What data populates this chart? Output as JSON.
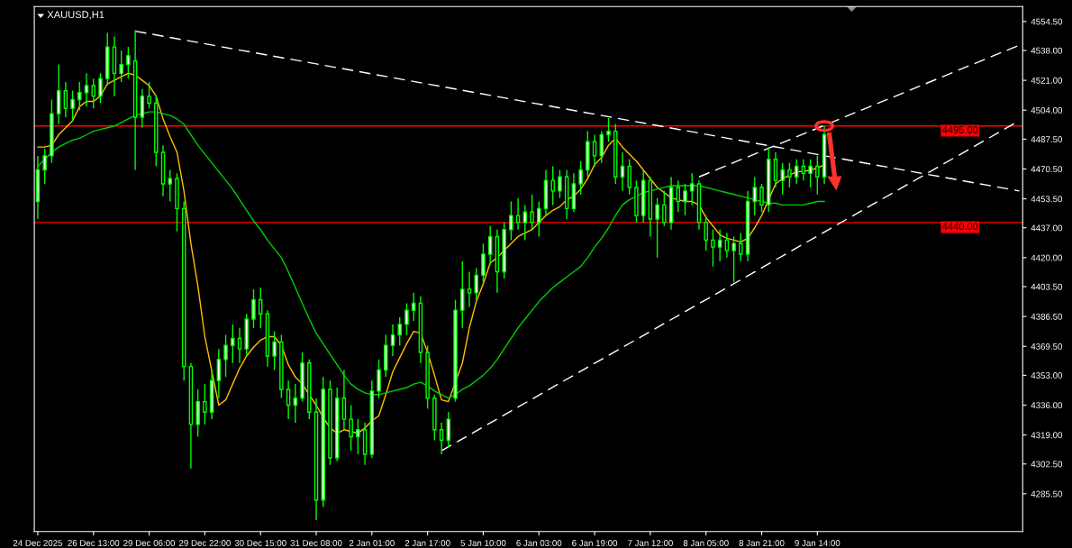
{
  "chart_data": {
    "type": "candlestick",
    "title": "XAUUSD,H1",
    "categories": [
      "24 Dec 2025",
      null,
      null,
      null,
      null,
      null,
      null,
      null,
      "26 Dec 13:00",
      null,
      null,
      null,
      null,
      null,
      null,
      null,
      "29 Dec 06:00",
      null,
      null,
      null,
      null,
      null,
      null,
      null,
      "29 Dec 22:00",
      null,
      null,
      null,
      null,
      null,
      null,
      null,
      "30 Dec 15:00",
      null,
      null,
      null,
      null,
      null,
      null,
      null,
      "31 Dec 08:00",
      null,
      null,
      null,
      null,
      null,
      null,
      null,
      "2 Jan 01:00",
      null,
      null,
      null,
      null,
      null,
      null,
      null,
      "2 Jan 17:00",
      null,
      null,
      null,
      null,
      null,
      null,
      null,
      "5 Jan 10:00",
      null,
      null,
      null,
      null,
      null,
      null,
      null,
      "6 Jan 03:00",
      null,
      null,
      null,
      null,
      null,
      null,
      null,
      "6 Jan 19:00",
      null,
      null,
      null,
      null,
      null,
      null,
      null,
      "7 Jan 12:00",
      null,
      null,
      null,
      null,
      null,
      null,
      null,
      "8 Jan 05:00",
      null,
      null,
      null,
      null,
      null,
      null,
      null,
      "8 Jan 21:00",
      null,
      null,
      null,
      null,
      null,
      null,
      null,
      "9 Jan 14:00",
      null,
      null,
      null,
      null,
      null,
      null,
      null,
      null,
      null,
      null,
      null,
      null,
      null,
      null,
      null,
      null,
      null,
      null,
      null,
      null,
      null,
      null,
      null,
      null,
      null,
      null,
      null,
      null,
      null
    ],
    "color": "#00ff00",
    "ohlc": [
      [
        4452,
        4478,
        4442,
        4470
      ],
      [
        4470,
        4482,
        4462,
        4478
      ],
      [
        4478,
        4510,
        4474,
        4502
      ],
      [
        4502,
        4530,
        4496,
        4515
      ],
      [
        4515,
        4520,
        4500,
        4505
      ],
      [
        4505,
        4515,
        4498,
        4510
      ],
      [
        4510,
        4520,
        4504,
        4514
      ],
      [
        4514,
        4525,
        4506,
        4518
      ],
      [
        4518,
        4522,
        4505,
        4512
      ],
      [
        4512,
        4525,
        4508,
        4522
      ],
      [
        4522,
        4548,
        4518,
        4540
      ],
      [
        4540,
        4546,
        4512,
        4525
      ],
      [
        4525,
        4538,
        4520,
        4530
      ],
      [
        4530,
        4540,
        4522,
        4535
      ],
      [
        4532,
        4549.5,
        4470,
        4500
      ],
      [
        4500,
        4516,
        4494,
        4512
      ],
      [
        4512,
        4520,
        4505,
        4508
      ],
      [
        4508,
        4512,
        4472,
        4480
      ],
      [
        4480,
        4484,
        4455,
        4462
      ],
      [
        4462,
        4470,
        4452,
        4465
      ],
      [
        4465,
        4468,
        4435,
        4448
      ],
      [
        4448,
        4452,
        4350,
        4358
      ],
      [
        4358,
        4360,
        4300,
        4325
      ],
      [
        4325,
        4345,
        4318,
        4338
      ],
      [
        4338,
        4348,
        4325,
        4332
      ],
      [
        4332,
        4356,
        4328,
        4350
      ],
      [
        4350,
        4368,
        4340,
        4362
      ],
      [
        4362,
        4376,
        4352,
        4370
      ],
      [
        4370,
        4382,
        4360,
        4374
      ],
      [
        4374,
        4380,
        4360,
        4368
      ],
      [
        4368,
        4388,
        4364,
        4385
      ],
      [
        4385,
        4402,
        4380,
        4396
      ],
      [
        4396,
        4403,
        4380,
        4388
      ],
      [
        4388,
        4390,
        4358,
        4364
      ],
      [
        4364,
        4378,
        4356,
        4372
      ],
      [
        4372,
        4376,
        4340,
        4345
      ],
      [
        4345,
        4350,
        4328,
        4336
      ],
      [
        4336,
        4348,
        4326,
        4340
      ],
      [
        4340,
        4366,
        4338,
        4360
      ],
      [
        4360,
        4362,
        4328,
        4332
      ],
      [
        4332,
        4340,
        4270.5,
        4282
      ],
      [
        4282,
        4352,
        4278,
        4345
      ],
      [
        4345,
        4350,
        4302,
        4306
      ],
      [
        4306,
        4346,
        4304,
        4340
      ],
      [
        4340,
        4356,
        4322,
        4328
      ],
      [
        4328,
        4336,
        4310,
        4318
      ],
      [
        4318,
        4328,
        4308,
        4322
      ],
      [
        4322,
        4326,
        4302,
        4308
      ],
      [
        4308,
        4350,
        4306,
        4344
      ],
      [
        4344,
        4362,
        4340,
        4356
      ],
      [
        4356,
        4376,
        4352,
        4370
      ],
      [
        4370,
        4382,
        4364,
        4376
      ],
      [
        4376,
        4386,
        4370,
        4382
      ],
      [
        4382,
        4394,
        4376,
        4390
      ],
      [
        4390,
        4400,
        4384,
        4394
      ],
      [
        4394,
        4398,
        4360,
        4366
      ],
      [
        4366,
        4370,
        4334,
        4340
      ],
      [
        4340,
        4342,
        4316,
        4322
      ],
      [
        4322,
        4326,
        4308,
        4316
      ],
      [
        4316,
        4332,
        4312,
        4328
      ],
      [
        4340,
        4396,
        4338,
        4390
      ],
      [
        4390,
        4418,
        4380,
        4402
      ],
      [
        4402,
        4412,
        4392,
        4400
      ],
      [
        4400,
        4414,
        4396,
        4410
      ],
      [
        4410,
        4428,
        4404,
        4422
      ],
      [
        4422,
        4438,
        4416,
        4432
      ],
      [
        4432,
        4436,
        4400,
        4412
      ],
      [
        4412,
        4440,
        4408,
        4436
      ],
      [
        4436,
        4452,
        4430,
        4444
      ],
      [
        4444,
        4454,
        4436,
        4440
      ],
      [
        4440,
        4450,
        4430,
        4446
      ],
      [
        4446,
        4456,
        4436,
        4440
      ],
      [
        4440,
        4452,
        4432,
        4448
      ],
      [
        4448,
        4470,
        4444,
        4464
      ],
      [
        4464,
        4472,
        4450,
        4458
      ],
      [
        4458,
        4470,
        4454,
        4466
      ],
      [
        4466,
        4470,
        4442,
        4448
      ],
      [
        4448,
        4468,
        4446,
        4462
      ],
      [
        4462,
        4475,
        4456,
        4470
      ],
      [
        4470,
        4492,
        4466,
        4486
      ],
      [
        4486,
        4490,
        4472,
        4478
      ],
      [
        4478,
        4492,
        4474,
        4490
      ],
      [
        4490,
        4499.5,
        4486,
        4492
      ],
      [
        4492,
        4496,
        4462,
        4466
      ],
      [
        4466,
        4480,
        4458,
        4472
      ],
      [
        4472,
        4476,
        4456,
        4460
      ],
      [
        4460,
        4464,
        4440,
        4444
      ],
      [
        4444,
        4470,
        4440,
        4464
      ],
      [
        4464,
        4466,
        4432,
        4442
      ],
      [
        4442,
        4454,
        4420,
        4450
      ],
      [
        4450,
        4458,
        4438,
        4440
      ],
      [
        4440,
        4466,
        4436,
        4460
      ],
      [
        4460,
        4464,
        4446,
        4452
      ],
      [
        4452,
        4462,
        4444,
        4458
      ],
      [
        4458,
        4468,
        4450,
        4462
      ],
      [
        4462,
        4464,
        4436,
        4440
      ],
      [
        4440,
        4444,
        4424,
        4430
      ],
      [
        4430,
        4436,
        4415,
        4426
      ],
      [
        4426,
        4436,
        4418,
        4430
      ],
      [
        4430,
        4434,
        4420,
        4424
      ],
      [
        4424,
        4432,
        4406,
        4428
      ],
      [
        4428,
        4434,
        4418,
        4422
      ],
      [
        4422,
        4458,
        4418,
        4452
      ],
      [
        4452,
        4466,
        4444,
        4460
      ],
      [
        4460,
        4462,
        4446,
        4450
      ],
      [
        4450,
        4483,
        4446,
        4476
      ],
      [
        4476,
        4480,
        4460,
        4464
      ],
      [
        4464,
        4474,
        4456,
        4470
      ],
      [
        4470,
        4474,
        4460,
        4466
      ],
      [
        4466,
        4476,
        4462,
        4472
      ],
      [
        4472,
        4476,
        4464,
        4468
      ],
      [
        4468,
        4476,
        4460,
        4472
      ],
      [
        4472,
        4478,
        4456,
        4466
      ],
      [
        4466,
        4495,
        4462,
        4490
      ],
      null,
      null,
      null,
      null,
      null,
      null,
      null,
      null,
      null,
      null,
      null,
      null,
      null,
      null,
      null,
      null,
      null,
      null,
      null,
      null,
      null,
      null,
      null,
      null,
      null,
      null,
      null,
      null
    ],
    "series": [
      {
        "type": "line",
        "color": "#ffc000",
        "values": [
          4483,
          4483,
          4484,
          4490,
          4494,
          4498,
          4506,
          4509,
          4509,
          4512,
          4519,
          4521,
          4523,
          4525,
          4524,
          4521,
          4518,
          4512,
          4499,
          4489,
          4480,
          4458,
          4428,
          4404,
          4375,
          null,
          4336,
          4339,
          4348,
          4357,
          4364,
          4369,
          4373,
          4375,
          4375,
          4370,
          4359,
          4352,
          4348,
          4342,
          4336,
          4329,
          4323,
          4320,
          4322,
          4321,
          4320,
          4323,
          4327,
          4330,
          4342,
          4355,
          4363,
          4371,
          4378,
          4377,
          4366,
          4353,
          4339,
          4338,
          null,
          4360,
          4380,
          4395,
          4405,
          4417,
          4420,
          4424,
          4428,
          4432,
          4434,
          4436,
          4440,
          4444,
          4447,
          4449,
          4453,
          4455,
          4459,
          4465,
          4473,
          4477,
          4484,
          4488,
          4483,
          4479,
          4475,
          4470,
          4465,
          4460,
          4457,
          4454,
          4453,
          4452,
          4452,
          4450,
          4443,
          4438,
          4433,
          4431,
          4430,
          4429,
          4431,
          4437,
          4444,
          null,
          4462,
          4465,
          4467,
          4469,
          4469,
          4470,
          4471,
          4473,
          null,
          null,
          null,
          null,
          null,
          null,
          null,
          null,
          null,
          null,
          null,
          null,
          null,
          null,
          null,
          null,
          null,
          null,
          null,
          null,
          null,
          null,
          null,
          null,
          null,
          null,
          null,
          null
        ]
      },
      {
        "type": "line",
        "color": "#00d000",
        "values": [
          4472,
          4476,
          4480,
          4483,
          4485,
          4487,
          4488,
          4490,
          4492,
          4493,
          4494,
          4495,
          4497,
          4499,
          4501,
          4502,
          4503,
          4503,
          4502,
          4501,
          4499,
          4496,
          4490,
          4484,
          4479,
          4474,
          4469,
          4464,
          4459,
          4453,
          4447,
          4441,
          4436,
          4430,
          4425,
          4420,
          4412,
          4403,
          4394,
          4385,
          4377,
          4371,
          4365,
          4359,
          4353,
          4348,
          4345,
          4343,
          4342,
          4342,
          4343,
          4344,
          4345,
          4346,
          4348,
          4349,
          4347,
          4344,
          4342,
          4340,
          4342,
          4345,
          4347,
          4350,
          4353,
          4357,
          4362,
          4368,
          4374,
          4380,
          4385,
          4390,
          4395,
          4399,
          4403,
          4406,
          4409,
          4412,
          4415,
          4420,
          4426,
          4431,
          4437,
          4444,
          4450,
          4453,
          4455,
          4457,
          4458,
          4459,
          4460,
          4461,
          4461,
          4461,
          4461,
          4461,
          4460,
          4459,
          4458,
          4457,
          4456,
          4455,
          4454,
          4453,
          4452,
          4451,
          4451,
          4450,
          4450,
          4450,
          4450,
          4451,
          4452,
          4452,
          null,
          null,
          null,
          null,
          null,
          null,
          null,
          null,
          null,
          null,
          null,
          null,
          null,
          null,
          null,
          null,
          null,
          null,
          null,
          null,
          null,
          null,
          null,
          null,
          null,
          null,
          null,
          null
        ]
      },
      {
        "type": "line",
        "color": "#ffffff",
        "line_style": "dashed",
        "values": [
          null,
          null,
          null,
          null,
          null,
          null,
          null,
          null,
          null,
          null,
          null,
          null,
          null,
          null,
          4549,
          null,
          null,
          null,
          null,
          null,
          null,
          null,
          null,
          null,
          null,
          null,
          null,
          null,
          null,
          null,
          null,
          null,
          null,
          null,
          null,
          null,
          null,
          null,
          null,
          null,
          null,
          null,
          null,
          null,
          null,
          null,
          null,
          null,
          null,
          null,
          null,
          null,
          null,
          null,
          null,
          null,
          null,
          null,
          null,
          null,
          null,
          null,
          null,
          null,
          null,
          null,
          null,
          null,
          null,
          null,
          null,
          null,
          null,
          null,
          null,
          null,
          null,
          null,
          null,
          null,
          null,
          null,
          null,
          null,
          null,
          null,
          null,
          null,
          null,
          null,
          null,
          null,
          null,
          null,
          null,
          null,
          null,
          null,
          null,
          null,
          null,
          null,
          null,
          null,
          null,
          null,
          null,
          null,
          null,
          null,
          null,
          null,
          null,
          null,
          null,
          null,
          null,
          null,
          null,
          null,
          null,
          null,
          null,
          null,
          null,
          null,
          null,
          null,
          null,
          null,
          null,
          null,
          null,
          null,
          null,
          null,
          null,
          null,
          null,
          null,
          null,
          4458
        ]
      },
      {
        "type": "line",
        "color": "#ffffff",
        "line_style": "dashed",
        "values": [
          null,
          null,
          null,
          null,
          null,
          null,
          null,
          null,
          null,
          null,
          null,
          null,
          null,
          null,
          null,
          null,
          null,
          null,
          null,
          null,
          null,
          null,
          null,
          null,
          null,
          null,
          null,
          null,
          null,
          null,
          null,
          null,
          null,
          null,
          null,
          null,
          null,
          null,
          null,
          null,
          null,
          null,
          null,
          null,
          null,
          null,
          null,
          null,
          null,
          null,
          null,
          null,
          null,
          null,
          null,
          null,
          null,
          null,
          4310,
          null,
          null,
          null,
          null,
          null,
          null,
          null,
          null,
          null,
          null,
          null,
          null,
          null,
          null,
          null,
          null,
          null,
          null,
          null,
          null,
          null,
          null,
          null,
          null,
          null,
          null,
          null,
          null,
          null,
          null,
          null,
          null,
          null,
          null,
          null,
          null,
          null,
          null,
          null,
          null,
          null,
          null,
          null,
          null,
          null,
          null,
          null,
          null,
          null,
          null,
          null,
          null,
          null,
          null,
          null,
          null,
          null,
          null,
          null,
          null,
          null,
          null,
          null,
          null,
          null,
          null,
          null,
          null,
          null,
          null,
          null,
          null,
          null,
          null,
          null,
          null,
          null,
          null,
          null,
          null,
          null,
          null,
          4498
        ]
      },
      {
        "type": "line",
        "color": "#ffffff",
        "line_style": "dashed",
        "values": [
          null,
          null,
          null,
          null,
          null,
          null,
          null,
          null,
          null,
          null,
          null,
          null,
          null,
          null,
          null,
          null,
          null,
          null,
          null,
          null,
          null,
          null,
          null,
          null,
          null,
          null,
          null,
          null,
          null,
          null,
          null,
          null,
          null,
          null,
          null,
          null,
          null,
          null,
          null,
          null,
          null,
          null,
          null,
          null,
          null,
          null,
          null,
          null,
          null,
          null,
          null,
          null,
          null,
          null,
          null,
          null,
          null,
          null,
          null,
          null,
          null,
          null,
          null,
          null,
          null,
          null,
          null,
          null,
          null,
          null,
          null,
          null,
          null,
          null,
          null,
          null,
          null,
          null,
          null,
          null,
          null,
          null,
          null,
          null,
          null,
          null,
          null,
          null,
          null,
          null,
          null,
          null,
          null,
          null,
          null,
          4466,
          null,
          null,
          null,
          null,
          null,
          null,
          null,
          null,
          null,
          null,
          null,
          null,
          null,
          null,
          null,
          null,
          null,
          null,
          null,
          null,
          null,
          null,
          null,
          null,
          null,
          null,
          null,
          null,
          null,
          null,
          null,
          null,
          null,
          null,
          null,
          null,
          null,
          null,
          null,
          null,
          null,
          null,
          null,
          null,
          null,
          4541
        ]
      }
    ],
    "ylim": [
      4264,
      4563
    ],
    "yticks": [
      {
        "value": 4554.5,
        "label": "4554.50"
      },
      {
        "value": 4538,
        "label": "4538.00"
      },
      {
        "value": 4521,
        "label": "4521.00"
      },
      {
        "value": 4504,
        "label": "4504.00"
      },
      {
        "value": 4487.5,
        "label": "4487.50"
      },
      {
        "value": 4470.5,
        "label": "4470.50"
      },
      {
        "value": 4453.5,
        "label": "4453.50"
      },
      {
        "value": 4437,
        "label": "4437.00"
      },
      {
        "value": 4420,
        "label": "4420.00"
      },
      {
        "value": 4403.5,
        "label": "4403.50"
      },
      {
        "value": 4386.5,
        "label": "4386.50"
      },
      {
        "value": 4369.5,
        "label": "4369.50"
      },
      {
        "value": 4353,
        "label": "4353.00"
      },
      {
        "value": 4336,
        "label": "4336.00"
      },
      {
        "value": 4319,
        "label": "4319.00"
      },
      {
        "value": 4302.5,
        "label": "4302.50"
      },
      {
        "value": 4285.5,
        "label": "4285.50"
      }
    ],
    "ref_lines": [
      {
        "axis": "y",
        "value": 4495,
        "label": "4495.00",
        "color": "#ff0000"
      },
      {
        "axis": "y",
        "value": 4440,
        "label": "4440.00",
        "color": "#ff0000"
      }
    ]
  }
}
